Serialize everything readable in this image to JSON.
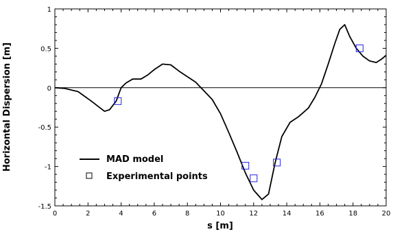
{
  "chart_data": {
    "type": "line",
    "title": "",
    "xlabel": "s [m]",
    "ylabel": "Horizontal Dispersion [m]",
    "xlim": [
      0,
      20
    ],
    "ylim": [
      -1.5,
      1
    ],
    "x_ticks": [
      0,
      2,
      4,
      6,
      8,
      10,
      12,
      14,
      16,
      18,
      20
    ],
    "y_ticks": [
      -1.5,
      -1,
      -0.5,
      0,
      0.5,
      1
    ],
    "x_tick_labels": [
      "0",
      "2",
      "4",
      "6",
      "8",
      "10",
      "12",
      "14",
      "16",
      "18",
      "20"
    ],
    "y_tick_labels": [
      "-1.5",
      "-1",
      "-0.5",
      "0",
      "0.5",
      "1"
    ],
    "grid": false,
    "zero_line": true,
    "legend_position": "bottom-left",
    "series": [
      {
        "name": "MAD model",
        "style": "line",
        "color": "#000000",
        "x": [
          0,
          0.6,
          1.4,
          2.2,
          3.0,
          3.3,
          3.7,
          4.0,
          4.3,
          4.7,
          5.2,
          5.6,
          6.0,
          6.5,
          7.0,
          7.5,
          8.0,
          8.5,
          9.0,
          9.5,
          10.0,
          10.5,
          11.0,
          11.5,
          12.0,
          12.5,
          12.9,
          13.3,
          13.7,
          14.2,
          14.7,
          15.3,
          15.7,
          16.1,
          16.5,
          16.9,
          17.2,
          17.5,
          17.8,
          18.2,
          18.6,
          19.0,
          19.4,
          19.7,
          20.0
        ],
        "y": [
          0,
          -0.01,
          -0.05,
          -0.17,
          -0.3,
          -0.28,
          -0.17,
          0.0,
          0.06,
          0.11,
          0.11,
          0.16,
          0.23,
          0.3,
          0.29,
          0.21,
          0.14,
          0.07,
          -0.04,
          -0.15,
          -0.33,
          -0.57,
          -0.82,
          -1.08,
          -1.3,
          -1.42,
          -1.35,
          -0.95,
          -0.62,
          -0.44,
          -0.37,
          -0.26,
          -0.12,
          0.05,
          0.3,
          0.56,
          0.74,
          0.8,
          0.65,
          0.5,
          0.4,
          0.34,
          0.32,
          0.36,
          0.41
        ]
      },
      {
        "name": "Experimental points",
        "style": "marker-square",
        "color": "#2222dd",
        "x": [
          3.8,
          11.5,
          12.0,
          13.4,
          18.4
        ],
        "y": [
          -0.17,
          -0.99,
          -1.15,
          -0.95,
          0.5
        ]
      }
    ]
  }
}
